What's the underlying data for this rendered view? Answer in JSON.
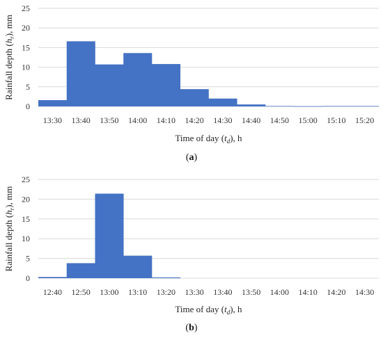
{
  "chart_data": [
    {
      "type": "bar",
      "panel_label": "(a)",
      "xlabel": "Time of day (t_d), h",
      "ylabel": "Rainfall depth (h_r), mm",
      "ylim": [
        0,
        25
      ],
      "yticks": [
        0,
        5,
        10,
        15,
        20,
        25
      ],
      "categories": [
        "13:30",
        "13:40",
        "13:50",
        "14:00",
        "14:10",
        "14:20",
        "14:30",
        "14:40",
        "14:50",
        "15:00",
        "15:10",
        "15:20"
      ],
      "values": [
        1.6,
        16.6,
        10.7,
        13.6,
        10.8,
        4.4,
        2.0,
        0.5,
        0.1,
        0.05,
        0.1,
        0.1
      ],
      "grid": true,
      "bar_color": "#4472C4"
    },
    {
      "type": "bar",
      "panel_label": "(b)",
      "xlabel": "Time of day (t_d), h",
      "ylabel": "Rainfall depth (h_r), mm",
      "ylim": [
        0,
        25
      ],
      "yticks": [
        0,
        5,
        10,
        15,
        20,
        25
      ],
      "categories": [
        "12:40",
        "12:50",
        "13:00",
        "13:10",
        "13:20",
        "13:30",
        "13:40",
        "13:50",
        "14:00",
        "14:10",
        "14:20",
        "14:30"
      ],
      "values": [
        0.3,
        3.8,
        21.4,
        5.7,
        0.2,
        0,
        0,
        0,
        0,
        0,
        0,
        0
      ],
      "grid": true,
      "bar_color": "#4472C4"
    }
  ],
  "text": {
    "xlabel_prefix": "Time of day (",
    "xlabel_var": "t",
    "xlabel_sub": "d",
    "xlabel_suffix": "), h",
    "ylabel_prefix": "Rainfall depth (",
    "ylabel_var": "h",
    "ylabel_sub": "r",
    "ylabel_suffix": "), mm"
  }
}
